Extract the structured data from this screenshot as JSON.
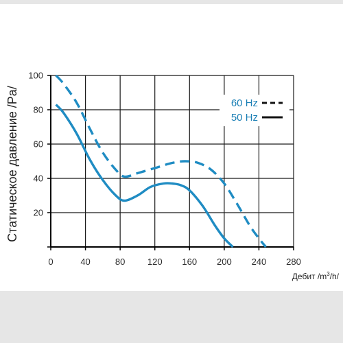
{
  "chart_data": {
    "type": "line",
    "title": "",
    "ylabel": "Статическое давление /Pa/",
    "xlabel_prefix": "Дебит /m",
    "xlabel_sup": "3",
    "xlabel_suffix": "/h/",
    "xlim": [
      0,
      280
    ],
    "ylim": [
      0,
      100
    ],
    "x_ticks": [
      0,
      40,
      80,
      120,
      160,
      200,
      240,
      280
    ],
    "y_ticks": [
      20,
      40,
      60,
      80,
      100
    ],
    "x_tick_labels": [
      "0",
      "40",
      "80",
      "120",
      "160",
      "200",
      "240",
      "280"
    ],
    "y_tick_labels": [
      "20",
      "40",
      "60",
      "80",
      "100"
    ],
    "grid": true,
    "legend_position": "top-right",
    "curve_color": "#1f8cc3",
    "legend_text_color": "#1a7fb5",
    "series": [
      {
        "name": "60 Hz",
        "style": "dashed",
        "x": [
          6,
          15,
          30,
          45,
          60,
          75,
          85,
          100,
          120,
          140,
          155,
          170,
          185,
          200,
          215,
          230,
          240,
          248
        ],
        "y": [
          100,
          95,
          84,
          69,
          55,
          45,
          41,
          43,
          46,
          49,
          50,
          49,
          45,
          37,
          25,
          12,
          5,
          0
        ]
      },
      {
        "name": "50 Hz",
        "style": "solid",
        "x": [
          6,
          15,
          30,
          45,
          60,
          75,
          85,
          100,
          115,
          130,
          140,
          150,
          160,
          175,
          190,
          200,
          210
        ],
        "y": [
          83,
          78,
          66,
          51,
          39,
          30,
          27,
          30,
          35,
          37,
          37,
          36,
          33,
          24,
          12,
          5,
          0
        ]
      }
    ]
  }
}
